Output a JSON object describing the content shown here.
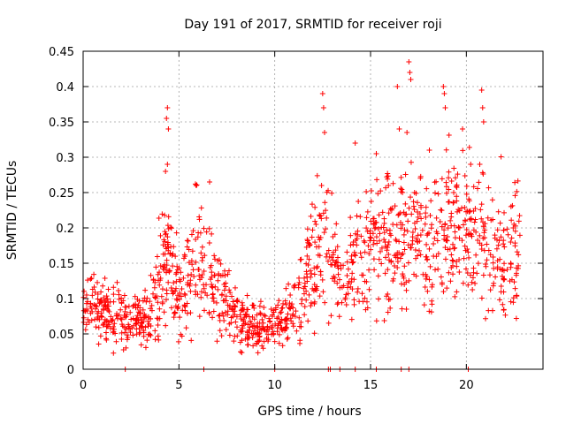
{
  "chart_data": {
    "type": "scatter",
    "title": "Day 191 of 2017, SRMTID for receiver roji",
    "xlabel": "GPS time / hours",
    "ylabel": "SRMTID / TECUs",
    "xlim": [
      0,
      24
    ],
    "ylim": [
      0,
      0.45
    ],
    "x_ticks": [
      0,
      5,
      10,
      15,
      20
    ],
    "x_tick_labels": [
      "0",
      "5",
      "10",
      "15",
      "20"
    ],
    "y_ticks": [
      0,
      0.05,
      0.1,
      0.15,
      0.2,
      0.25,
      0.3,
      0.35,
      0.4,
      0.45
    ],
    "y_tick_labels": [
      "0",
      "0.05",
      "0.1",
      "0.15",
      "0.2",
      "0.25",
      "0.3",
      "0.35",
      "0.4",
      "0.45"
    ],
    "grid": true,
    "marker": "+",
    "color": "#ff0000",
    "trend": [
      [
        0.0,
        0.085
      ],
      [
        0.5,
        0.09
      ],
      [
        1.0,
        0.08
      ],
      [
        1.5,
        0.075
      ],
      [
        2.0,
        0.072
      ],
      [
        2.5,
        0.068
      ],
      [
        3.0,
        0.068
      ],
      [
        3.5,
        0.075
      ],
      [
        4.0,
        0.13
      ],
      [
        4.3,
        0.16
      ],
      [
        4.6,
        0.14
      ],
      [
        5.0,
        0.1
      ],
      [
        5.5,
        0.13
      ],
      [
        6.0,
        0.16
      ],
      [
        6.5,
        0.14
      ],
      [
        7.0,
        0.11
      ],
      [
        7.5,
        0.09
      ],
      [
        8.0,
        0.07
      ],
      [
        8.5,
        0.065
      ],
      [
        9.0,
        0.06
      ],
      [
        9.5,
        0.055
      ],
      [
        10.0,
        0.06
      ],
      [
        10.5,
        0.075
      ],
      [
        11.0,
        0.09
      ],
      [
        11.5,
        0.11
      ],
      [
        12.0,
        0.15
      ],
      [
        12.5,
        0.17
      ],
      [
        13.0,
        0.16
      ],
      [
        13.5,
        0.15
      ],
      [
        14.0,
        0.15
      ],
      [
        14.5,
        0.17
      ],
      [
        15.0,
        0.18
      ],
      [
        15.5,
        0.17
      ],
      [
        16.0,
        0.18
      ],
      [
        16.5,
        0.19
      ],
      [
        17.0,
        0.19
      ],
      [
        17.5,
        0.2
      ],
      [
        18.0,
        0.18
      ],
      [
        18.5,
        0.18
      ],
      [
        19.0,
        0.19
      ],
      [
        19.5,
        0.2
      ],
      [
        20.0,
        0.19
      ],
      [
        20.5,
        0.19
      ],
      [
        21.0,
        0.18
      ],
      [
        21.5,
        0.18
      ],
      [
        22.0,
        0.17
      ],
      [
        22.5,
        0.17
      ],
      [
        22.8,
        0.18
      ]
    ],
    "spikes": [
      {
        "x": 4.4,
        "y": 0.37
      },
      {
        "x": 4.35,
        "y": 0.355
      },
      {
        "x": 4.45,
        "y": 0.34
      },
      {
        "x": 4.4,
        "y": 0.29
      },
      {
        "x": 4.3,
        "y": 0.28
      },
      {
        "x": 5.9,
        "y": 0.26
      },
      {
        "x": 6.6,
        "y": 0.265
      },
      {
        "x": 12.5,
        "y": 0.39
      },
      {
        "x": 12.55,
        "y": 0.37
      },
      {
        "x": 12.6,
        "y": 0.335
      },
      {
        "x": 14.2,
        "y": 0.32
      },
      {
        "x": 15.3,
        "y": 0.305
      },
      {
        "x": 16.4,
        "y": 0.4
      },
      {
        "x": 16.5,
        "y": 0.34
      },
      {
        "x": 17.0,
        "y": 0.435
      },
      {
        "x": 17.05,
        "y": 0.42
      },
      {
        "x": 17.1,
        "y": 0.41
      },
      {
        "x": 16.9,
        "y": 0.335
      },
      {
        "x": 18.8,
        "y": 0.4
      },
      {
        "x": 18.85,
        "y": 0.39
      },
      {
        "x": 18.9,
        "y": 0.37
      },
      {
        "x": 19.8,
        "y": 0.34
      },
      {
        "x": 20.8,
        "y": 0.395
      },
      {
        "x": 20.85,
        "y": 0.37
      },
      {
        "x": 20.9,
        "y": 0.35
      },
      {
        "x": 20.7,
        "y": 0.29
      }
    ],
    "zero_points": [
      2.2,
      6.3,
      10.0,
      12.8,
      12.9,
      13.4,
      14.2,
      15.3,
      16.6,
      17.0,
      20.1
    ]
  }
}
